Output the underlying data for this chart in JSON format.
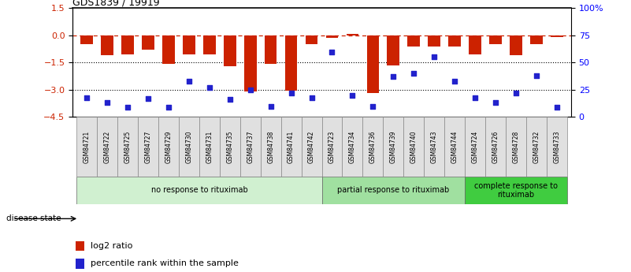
{
  "title": "GDS1839 / 19919",
  "samples": [
    "GSM84721",
    "GSM84722",
    "GSM84725",
    "GSM84727",
    "GSM84729",
    "GSM84730",
    "GSM84731",
    "GSM84735",
    "GSM84737",
    "GSM84738",
    "GSM84741",
    "GSM84742",
    "GSM84723",
    "GSM84734",
    "GSM84736",
    "GSM84739",
    "GSM84740",
    "GSM84743",
    "GSM84744",
    "GSM84724",
    "GSM84726",
    "GSM84728",
    "GSM84732",
    "GSM84733"
  ],
  "log2_ratio": [
    -0.5,
    -1.1,
    -1.05,
    -0.8,
    -1.55,
    -1.05,
    -1.05,
    -1.7,
    -3.1,
    -1.55,
    -3.05,
    -0.5,
    -0.15,
    0.1,
    -3.2,
    -1.65,
    -0.6,
    -0.6,
    -0.6,
    -1.05,
    -0.5,
    -1.1,
    -0.5,
    -0.1
  ],
  "percentile": [
    18,
    13,
    9,
    17,
    9,
    33,
    27,
    16,
    25,
    10,
    22,
    18,
    60,
    20,
    10,
    37,
    40,
    55,
    33,
    18,
    13,
    22,
    38,
    9
  ],
  "groups": [
    {
      "label": "no response to rituximab",
      "start": 0,
      "end": 12,
      "color": "#d0f0d0"
    },
    {
      "label": "partial response to rituximab",
      "start": 12,
      "end": 19,
      "color": "#a0e0a0"
    },
    {
      "label": "complete response to\nrituximab",
      "start": 19,
      "end": 24,
      "color": "#40cc40"
    }
  ],
  "bar_color": "#cc2200",
  "dot_color": "#2222cc",
  "ylim_left": [
    -4.5,
    1.5
  ],
  "ylim_right": [
    0,
    100
  ],
  "yticks_left": [
    1.5,
    0,
    -1.5,
    -3.0,
    -4.5
  ],
  "yticks_right": [
    0,
    25,
    50,
    75,
    100
  ],
  "ytick_right_labels": [
    "0",
    "25",
    "50",
    "75",
    "100%"
  ],
  "hlines": [
    -1.5,
    -3.0
  ],
  "dashed_hline": 0.0,
  "n_samples": 24,
  "no_response_count": 12,
  "partial_response_count": 7,
  "complete_response_count": 5
}
